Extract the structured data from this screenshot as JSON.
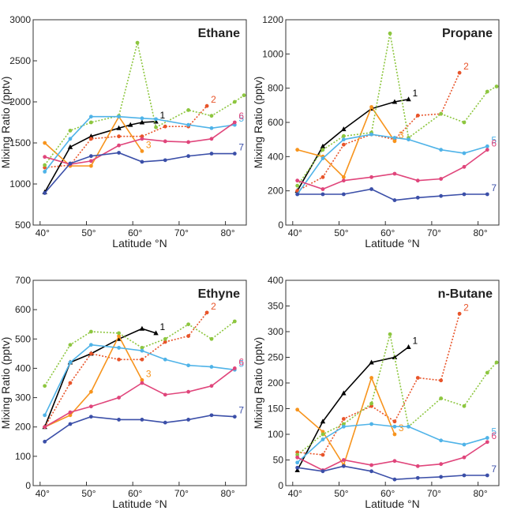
{
  "chart_data": [
    {
      "type": "line",
      "title": "Ethane",
      "xlabel": "Latitude °N",
      "ylabel": "Mixing Ratio (pptv)",
      "xlim": [
        38.5,
        84.5
      ],
      "xticks": [
        {
          "value": 40,
          "label": "40°"
        },
        {
          "value": 50,
          "label": "50°"
        },
        {
          "value": 60,
          "label": "60°"
        },
        {
          "value": 70,
          "label": "70°"
        },
        {
          "value": 80,
          "label": "80°"
        }
      ],
      "ylim": [
        500,
        3000
      ],
      "yticks": [
        500,
        1000,
        1500,
        2000,
        2500,
        3000
      ],
      "series": [
        {
          "name": "1",
          "color": "#000000",
          "linestyle": "solid",
          "x": [
            41,
            46.5,
            51,
            57,
            59.5,
            62,
            65
          ],
          "values": [
            900,
            1450,
            1580,
            1680,
            1720,
            1750,
            1760
          ]
        },
        {
          "name": "2",
          "color": "#e8542a",
          "linestyle": "dotted",
          "x": [
            41,
            46.5,
            51,
            57,
            62,
            67,
            72,
            76
          ],
          "values": [
            1200,
            1230,
            1550,
            1580,
            1580,
            1700,
            1700,
            1950
          ]
        },
        {
          "name": "3",
          "color": "#f7941d",
          "linestyle": "solid",
          "x": [
            41,
            46.5,
            51,
            57,
            62
          ],
          "values": [
            1500,
            1220,
            1220,
            1820,
            1400
          ]
        },
        {
          "color": "#8dc63f",
          "linestyle": "dotted",
          "x": [
            41,
            46.5,
            51,
            57,
            61,
            65,
            72,
            77,
            82,
            84
          ],
          "values": [
            1230,
            1650,
            1750,
            1830,
            2720,
            1690,
            1900,
            1830,
            2000,
            2080
          ]
        },
        {
          "name": "5",
          "color": "#4fb3e8",
          "linestyle": "solid",
          "x": [
            41,
            46.5,
            51,
            57,
            62,
            65,
            72,
            77,
            82
          ],
          "values": [
            1150,
            1550,
            1820,
            1820,
            1800,
            1790,
            1720,
            1680,
            1720
          ]
        },
        {
          "name": "6",
          "color": "#e0457b",
          "linestyle": "solid",
          "x": [
            41,
            46.5,
            51,
            57,
            62,
            67,
            72,
            77,
            82
          ],
          "values": [
            1330,
            1240,
            1280,
            1470,
            1550,
            1520,
            1510,
            1550,
            1750
          ]
        },
        {
          "name": "7",
          "color": "#3b4fa8",
          "linestyle": "solid",
          "x": [
            41,
            46.5,
            51,
            57,
            62,
            67,
            72,
            77,
            82
          ],
          "values": [
            890,
            1250,
            1340,
            1380,
            1270,
            1290,
            1340,
            1370,
            1370
          ]
        }
      ]
    },
    {
      "type": "line",
      "title": "Propane",
      "xlabel": "Latitude °N",
      "ylabel": "Mixing Ratio (pptv)",
      "xlim": [
        38.5,
        84.5
      ],
      "xticks": [
        {
          "value": 40,
          "label": "40°"
        },
        {
          "value": 50,
          "label": "50°"
        },
        {
          "value": 60,
          "label": "60°"
        },
        {
          "value": 70,
          "label": "70°"
        },
        {
          "value": 80,
          "label": "80°"
        }
      ],
      "ylim": [
        0,
        1200
      ],
      "yticks": [
        0,
        200,
        400,
        600,
        800,
        1000,
        1200
      ],
      "series": [
        {
          "name": "1",
          "color": "#000000",
          "linestyle": "solid",
          "x": [
            41,
            46.5,
            51,
            57,
            62,
            65
          ],
          "values": [
            200,
            460,
            560,
            680,
            720,
            735
          ]
        },
        {
          "name": "2",
          "color": "#e8542a",
          "linestyle": "dotted",
          "x": [
            41,
            46.5,
            51,
            57,
            62,
            67,
            72,
            76
          ],
          "values": [
            200,
            280,
            470,
            530,
            500,
            640,
            650,
            890
          ]
        },
        {
          "name": "3",
          "color": "#f7941d",
          "linestyle": "solid",
          "x": [
            41,
            46.5,
            51,
            57,
            62
          ],
          "values": [
            440,
            400,
            280,
            690,
            490
          ]
        },
        {
          "color": "#8dc63f",
          "linestyle": "dotted",
          "x": [
            41,
            46.5,
            51,
            57,
            61,
            65,
            72,
            77,
            82,
            84
          ],
          "values": [
            230,
            440,
            520,
            540,
            1120,
            510,
            650,
            600,
            780,
            810
          ]
        },
        {
          "name": "5",
          "color": "#4fb3e8",
          "linestyle": "solid",
          "x": [
            41,
            46.5,
            51,
            57,
            62,
            65,
            72,
            77,
            82
          ],
          "values": [
            180,
            390,
            500,
            530,
            510,
            500,
            440,
            420,
            460
          ]
        },
        {
          "name": "6",
          "color": "#e0457b",
          "linestyle": "solid",
          "x": [
            41,
            46.5,
            51,
            57,
            62,
            67,
            72,
            77,
            82
          ],
          "values": [
            260,
            210,
            260,
            280,
            300,
            260,
            270,
            340,
            440
          ]
        },
        {
          "name": "7",
          "color": "#3b4fa8",
          "linestyle": "solid",
          "x": [
            41,
            46.5,
            51,
            57,
            62,
            67,
            72,
            77,
            82
          ],
          "values": [
            180,
            180,
            180,
            210,
            145,
            160,
            170,
            180,
            180
          ]
        }
      ]
    },
    {
      "type": "line",
      "title": "Ethyne",
      "xlabel": "Latitude °N",
      "ylabel": "Mixing Ratio (pptv)",
      "xlim": [
        38.5,
        84.5
      ],
      "xticks": [
        {
          "value": 40,
          "label": "40°"
        },
        {
          "value": 50,
          "label": "50°"
        },
        {
          "value": 60,
          "label": "60°"
        },
        {
          "value": 70,
          "label": "70°"
        },
        {
          "value": 80,
          "label": "80°"
        }
      ],
      "ylim": [
        0,
        700
      ],
      "yticks": [
        0,
        100,
        200,
        300,
        400,
        500,
        600,
        700
      ],
      "series": [
        {
          "name": "1",
          "color": "#000000",
          "linestyle": "solid",
          "x": [
            41,
            46.5,
            51,
            57,
            62,
            65
          ],
          "values": [
            200,
            420,
            450,
            500,
            535,
            520
          ]
        },
        {
          "name": "2",
          "color": "#e8542a",
          "linestyle": "dotted",
          "x": [
            41,
            46.5,
            51,
            57,
            62,
            67,
            72,
            76
          ],
          "values": [
            200,
            350,
            450,
            430,
            430,
            490,
            510,
            590
          ]
        },
        {
          "name": "3",
          "color": "#f7941d",
          "linestyle": "solid",
          "x": [
            41,
            46.5,
            51,
            57,
            62
          ],
          "values": [
            200,
            240,
            320,
            510,
            360
          ]
        },
        {
          "color": "#8dc63f",
          "linestyle": "dotted",
          "x": [
            41,
            46.5,
            51,
            57,
            62,
            67,
            72,
            77,
            82
          ],
          "values": [
            340,
            480,
            525,
            520,
            470,
            500,
            550,
            500,
            560
          ]
        },
        {
          "name": "5",
          "color": "#4fb3e8",
          "linestyle": "solid",
          "x": [
            41,
            46.5,
            51,
            57,
            62,
            67,
            72,
            77,
            82
          ],
          "values": [
            240,
            420,
            480,
            470,
            460,
            430,
            410,
            405,
            395
          ]
        },
        {
          "name": "6",
          "color": "#e0457b",
          "linestyle": "solid",
          "x": [
            41,
            46.5,
            51,
            57,
            62,
            67,
            72,
            77,
            82
          ],
          "values": [
            200,
            250,
            270,
            300,
            350,
            310,
            320,
            340,
            400
          ]
        },
        {
          "name": "7",
          "color": "#3b4fa8",
          "linestyle": "solid",
          "x": [
            41,
            46.5,
            51,
            57,
            62,
            67,
            72,
            77,
            82
          ],
          "values": [
            150,
            210,
            235,
            225,
            225,
            215,
            225,
            240,
            235
          ]
        }
      ]
    },
    {
      "type": "line",
      "title": "n-Butane",
      "xlabel": "Latitude °N",
      "ylabel": "Mixing Ratio (pptv)",
      "xlim": [
        38.5,
        84.5
      ],
      "xticks": [
        {
          "value": 40,
          "label": "40°"
        },
        {
          "value": 50,
          "label": "50°"
        },
        {
          "value": 60,
          "label": "60°"
        },
        {
          "value": 70,
          "label": "70°"
        },
        {
          "value": 80,
          "label": "80°"
        }
      ],
      "ylim": [
        0,
        400
      ],
      "yticks": [
        0,
        50,
        100,
        150,
        200,
        250,
        300,
        350,
        400
      ],
      "series": [
        {
          "name": "1",
          "color": "#000000",
          "linestyle": "solid",
          "x": [
            41,
            46.5,
            51,
            57,
            62,
            65
          ],
          "values": [
            30,
            125,
            180,
            240,
            250,
            270
          ]
        },
        {
          "name": "2",
          "color": "#e8542a",
          "linestyle": "dotted",
          "x": [
            41,
            46.5,
            51,
            57,
            62,
            67,
            72,
            76
          ],
          "values": [
            65,
            60,
            130,
            155,
            125,
            210,
            205,
            335
          ]
        },
        {
          "name": "3",
          "color": "#f7941d",
          "linestyle": "solid",
          "x": [
            41,
            46.5,
            51,
            57,
            62
          ],
          "values": [
            148,
            105,
            40,
            210,
            100
          ]
        },
        {
          "color": "#8dc63f",
          "linestyle": "dotted",
          "x": [
            41,
            46.5,
            51,
            57,
            61,
            65,
            72,
            77,
            82,
            84
          ],
          "values": [
            60,
            100,
            120,
            160,
            295,
            115,
            170,
            155,
            220,
            240
          ]
        },
        {
          "name": "5",
          "color": "#4fb3e8",
          "linestyle": "solid",
          "x": [
            41,
            46.5,
            51,
            57,
            62,
            65,
            72,
            77,
            82
          ],
          "values": [
            45,
            90,
            115,
            120,
            115,
            115,
            88,
            80,
            93
          ]
        },
        {
          "name": "6",
          "color": "#e0457b",
          "linestyle": "solid",
          "x": [
            41,
            46.5,
            51,
            57,
            62,
            67,
            72,
            77,
            82
          ],
          "values": [
            55,
            30,
            50,
            40,
            48,
            38,
            42,
            55,
            85
          ]
        },
        {
          "name": "7",
          "color": "#3b4fa8",
          "linestyle": "solid",
          "x": [
            41,
            46.5,
            51,
            57,
            62,
            67,
            72,
            77,
            82
          ],
          "values": [
            35,
            28,
            38,
            28,
            12,
            15,
            17,
            20,
            20
          ]
        }
      ]
    }
  ]
}
